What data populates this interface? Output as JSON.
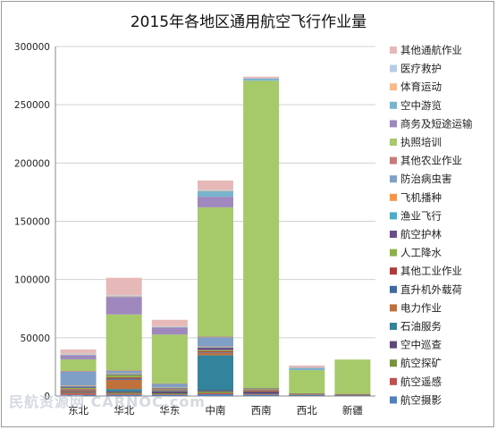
{
  "chart_data": {
    "type": "bar",
    "stacked": true,
    "title": "2015年各地区通用航空飞行作业量",
    "categories": [
      "东北",
      "华北",
      "华东",
      "中南",
      "西南",
      "西北",
      "新疆"
    ],
    "ylim": [
      0,
      300000
    ],
    "yticks": [
      0,
      50000,
      100000,
      150000,
      200000,
      250000,
      300000
    ],
    "ytick_labels": [
      "0",
      "50000",
      "100000",
      "150000",
      "200000",
      "250000",
      "300000"
    ],
    "grid": true,
    "legend_position": "right",
    "series": [
      {
        "name": "航空摄影",
        "color": "#4f81bd",
        "values": [
          1000,
          1000,
          1000,
          1500,
          1000,
          800,
          500
        ]
      },
      {
        "name": "航空遥感",
        "color": "#c0504d",
        "values": [
          1500,
          1000,
          500,
          1000,
          500,
          300,
          300
        ]
      },
      {
        "name": "航空探矿",
        "color": "#77933c",
        "values": [
          500,
          1000,
          800,
          1500,
          300,
          300,
          200
        ]
      },
      {
        "name": "空中巡查",
        "color": "#5f497a",
        "values": [
          1000,
          1000,
          1500,
          1000,
          2000,
          500,
          500
        ]
      },
      {
        "name": "石油服务",
        "color": "#31849b",
        "values": [
          0,
          2000,
          500,
          30000,
          0,
          0,
          0
        ]
      },
      {
        "name": "电力作业",
        "color": "#c0703a",
        "values": [
          1000,
          8000,
          800,
          2000,
          1000,
          300,
          300
        ]
      },
      {
        "name": "直升机外载荷",
        "color": "#3c6aa0",
        "values": [
          500,
          1000,
          500,
          500,
          500,
          0,
          0
        ]
      },
      {
        "name": "其他工业作业",
        "color": "#b03a38",
        "values": [
          500,
          1000,
          300,
          1000,
          300,
          0,
          0
        ]
      },
      {
        "name": "人工降水",
        "color": "#8db146",
        "values": [
          1000,
          2000,
          500,
          1000,
          500,
          0,
          0
        ]
      },
      {
        "name": "航空护林",
        "color": "#6b4d8c",
        "values": [
          1000,
          500,
          500,
          2000,
          500,
          0,
          0
        ]
      },
      {
        "name": "渔业飞行",
        "color": "#4bacc6",
        "values": [
          500,
          500,
          300,
          500,
          0,
          0,
          0
        ]
      },
      {
        "name": "飞机播种",
        "color": "#f79646",
        "values": [
          500,
          500,
          300,
          500,
          0,
          0,
          0
        ]
      },
      {
        "name": "防治病虫害",
        "color": "#7f9fc6",
        "values": [
          12000,
          2000,
          3000,
          8000,
          0,
          0,
          0
        ]
      },
      {
        "name": "其他农业作业",
        "color": "#c67b7b",
        "values": [
          500,
          500,
          300,
          500,
          0,
          0,
          0
        ]
      },
      {
        "name": "执照培训",
        "color": "#a6c96a",
        "values": [
          10000,
          48000,
          42000,
          111000,
          264000,
          20000,
          29500
        ]
      },
      {
        "name": "商务及短途运输",
        "color": "#9f88bd",
        "values": [
          3500,
          15000,
          6000,
          9000,
          0,
          0,
          0
        ]
      },
      {
        "name": "空中游览",
        "color": "#79b4cf",
        "values": [
          500,
          500,
          500,
          5000,
          2000,
          2000,
          0
        ]
      },
      {
        "name": "体育运动",
        "color": "#f9b98a",
        "values": [
          500,
          500,
          300,
          500,
          0,
          0,
          0
        ]
      },
      {
        "name": "医疗救护",
        "color": "#b7cce4",
        "values": [
          500,
          500,
          300,
          500,
          0,
          0,
          0
        ]
      },
      {
        "name": "其他通航作业",
        "color": "#e6b9b8",
        "values": [
          3500,
          15000,
          5500,
          8000,
          1500,
          2000,
          0
        ]
      }
    ]
  },
  "watermark": "民航资源网 CARNOC.com"
}
